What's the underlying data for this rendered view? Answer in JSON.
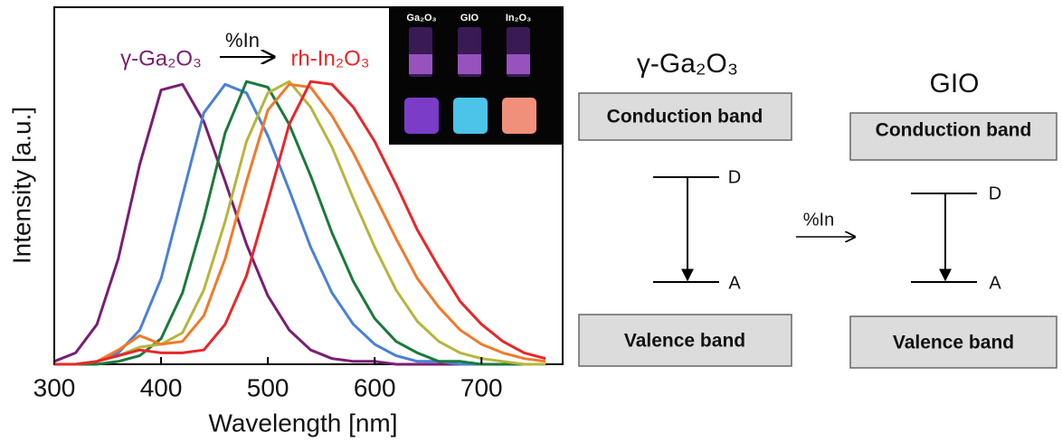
{
  "chart_data": {
    "type": "line",
    "x_label": "Wavelength [nm]",
    "y_label": "Intensity [a.u.]",
    "annotations": [
      "γ-Ga₂O₃",
      "%In",
      "rh-In₂O₃"
    ],
    "inset_labels": [
      "Ga₂O₃",
      "GIO",
      "In₂O₃"
    ],
    "x": [
      300,
      320,
      340,
      360,
      380,
      400,
      420,
      440,
      460,
      480,
      500,
      520,
      540,
      560,
      580,
      600,
      620,
      640,
      660,
      680,
      700,
      720,
      740,
      760
    ],
    "series": [
      {
        "color": "#7a1e72",
        "values": [
          0.01,
          0.04,
          0.14,
          0.37,
          0.7,
          0.96,
          0.98,
          0.85,
          0.64,
          0.42,
          0.24,
          0.12,
          0.05,
          0.02,
          0.01,
          0.01,
          0.0,
          0.0,
          0.0,
          0.0,
          0.0,
          0.0,
          0.0,
          0.0
        ]
      },
      {
        "color": "#4a80d6",
        "values": [
          0.0,
          0.0,
          0.01,
          0.04,
          0.12,
          0.3,
          0.59,
          0.88,
          0.98,
          0.95,
          0.8,
          0.61,
          0.41,
          0.25,
          0.14,
          0.07,
          0.03,
          0.01,
          0.01,
          0.0,
          0.0,
          0.0,
          0.0,
          0.0
        ]
      },
      {
        "color": "#1a7a3a",
        "values": [
          0.0,
          0.0,
          0.0,
          0.01,
          0.03,
          0.09,
          0.25,
          0.51,
          0.81,
          0.99,
          0.97,
          0.84,
          0.66,
          0.46,
          0.29,
          0.16,
          0.08,
          0.04,
          0.01,
          0.01,
          0.0,
          0.0,
          0.0,
          0.0
        ]
      },
      {
        "color": "#b6b53c",
        "values": [
          0.0,
          0.0,
          0.01,
          0.03,
          0.06,
          0.07,
          0.11,
          0.26,
          0.5,
          0.78,
          0.95,
          0.99,
          0.9,
          0.76,
          0.58,
          0.41,
          0.26,
          0.15,
          0.08,
          0.04,
          0.02,
          0.01,
          0.0,
          0.0
        ]
      },
      {
        "color": "#f07a2a",
        "values": [
          0.0,
          0.0,
          0.01,
          0.05,
          0.1,
          0.07,
          0.08,
          0.17,
          0.37,
          0.64,
          0.89,
          0.98,
          0.97,
          0.87,
          0.74,
          0.59,
          0.44,
          0.3,
          0.2,
          0.12,
          0.07,
          0.04,
          0.02,
          0.01
        ]
      },
      {
        "color": "#e8262a",
        "values": [
          0.0,
          0.0,
          0.01,
          0.03,
          0.05,
          0.04,
          0.04,
          0.05,
          0.14,
          0.31,
          0.57,
          0.84,
          0.99,
          0.98,
          0.9,
          0.78,
          0.63,
          0.47,
          0.34,
          0.22,
          0.14,
          0.08,
          0.04,
          0.02
        ]
      }
    ],
    "xlim": [
      300,
      776
    ],
    "xticks": [
      300,
      400,
      500,
      600,
      700
    ],
    "ylim": [
      0,
      1.25
    ],
    "grid": false
  },
  "diagram": {
    "arrow_label": "%In",
    "panels": [
      {
        "title": "γ-Ga₂O₃",
        "conduction": "Conduction band",
        "donor": "D",
        "acceptor": "A",
        "valence": "Valence band"
      },
      {
        "title": "GIO",
        "conduction": "Conduction band",
        "donor": "D",
        "acceptor": "A",
        "valence": "Valence band"
      }
    ]
  }
}
